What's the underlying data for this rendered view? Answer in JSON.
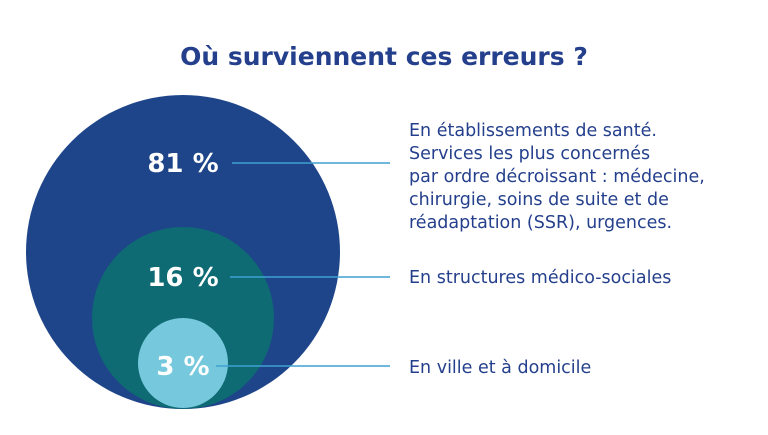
{
  "title": "Où surviennent ces erreurs ?",
  "colors": {
    "title": "#243f8c",
    "outer_circle": "#1e4589",
    "middle_circle": "#0e6b73",
    "inner_circle": "#76c8dc",
    "leader_line": "#3fa1d2",
    "text": "#243f8c"
  },
  "chart_data": {
    "type": "nested-circles",
    "title": "Où surviennent ces erreurs ?",
    "categories": [
      "En établissements de santé. Services les plus concernés par ordre décroissant : médecine, chirurgie, soins de suite et de réadaptation (SSR), urgences.",
      "En structures médico-sociales",
      "En ville et à domicile"
    ],
    "values": [
      81,
      16,
      3
    ],
    "unit": "%",
    "labels": [
      "81 %",
      "16 %",
      "3 %"
    ]
  },
  "items": [
    {
      "value_label": "81 %",
      "description": "En établissements de santé.\nServices les plus concernés\npar ordre décroissant : médecine,\nchirurgie, soins de suite et de\nréadaptation (SSR), urgences."
    },
    {
      "value_label": "16 %",
      "description": "En structures médico-sociales"
    },
    {
      "value_label": "3 %",
      "description": "En ville et à domicile"
    }
  ]
}
